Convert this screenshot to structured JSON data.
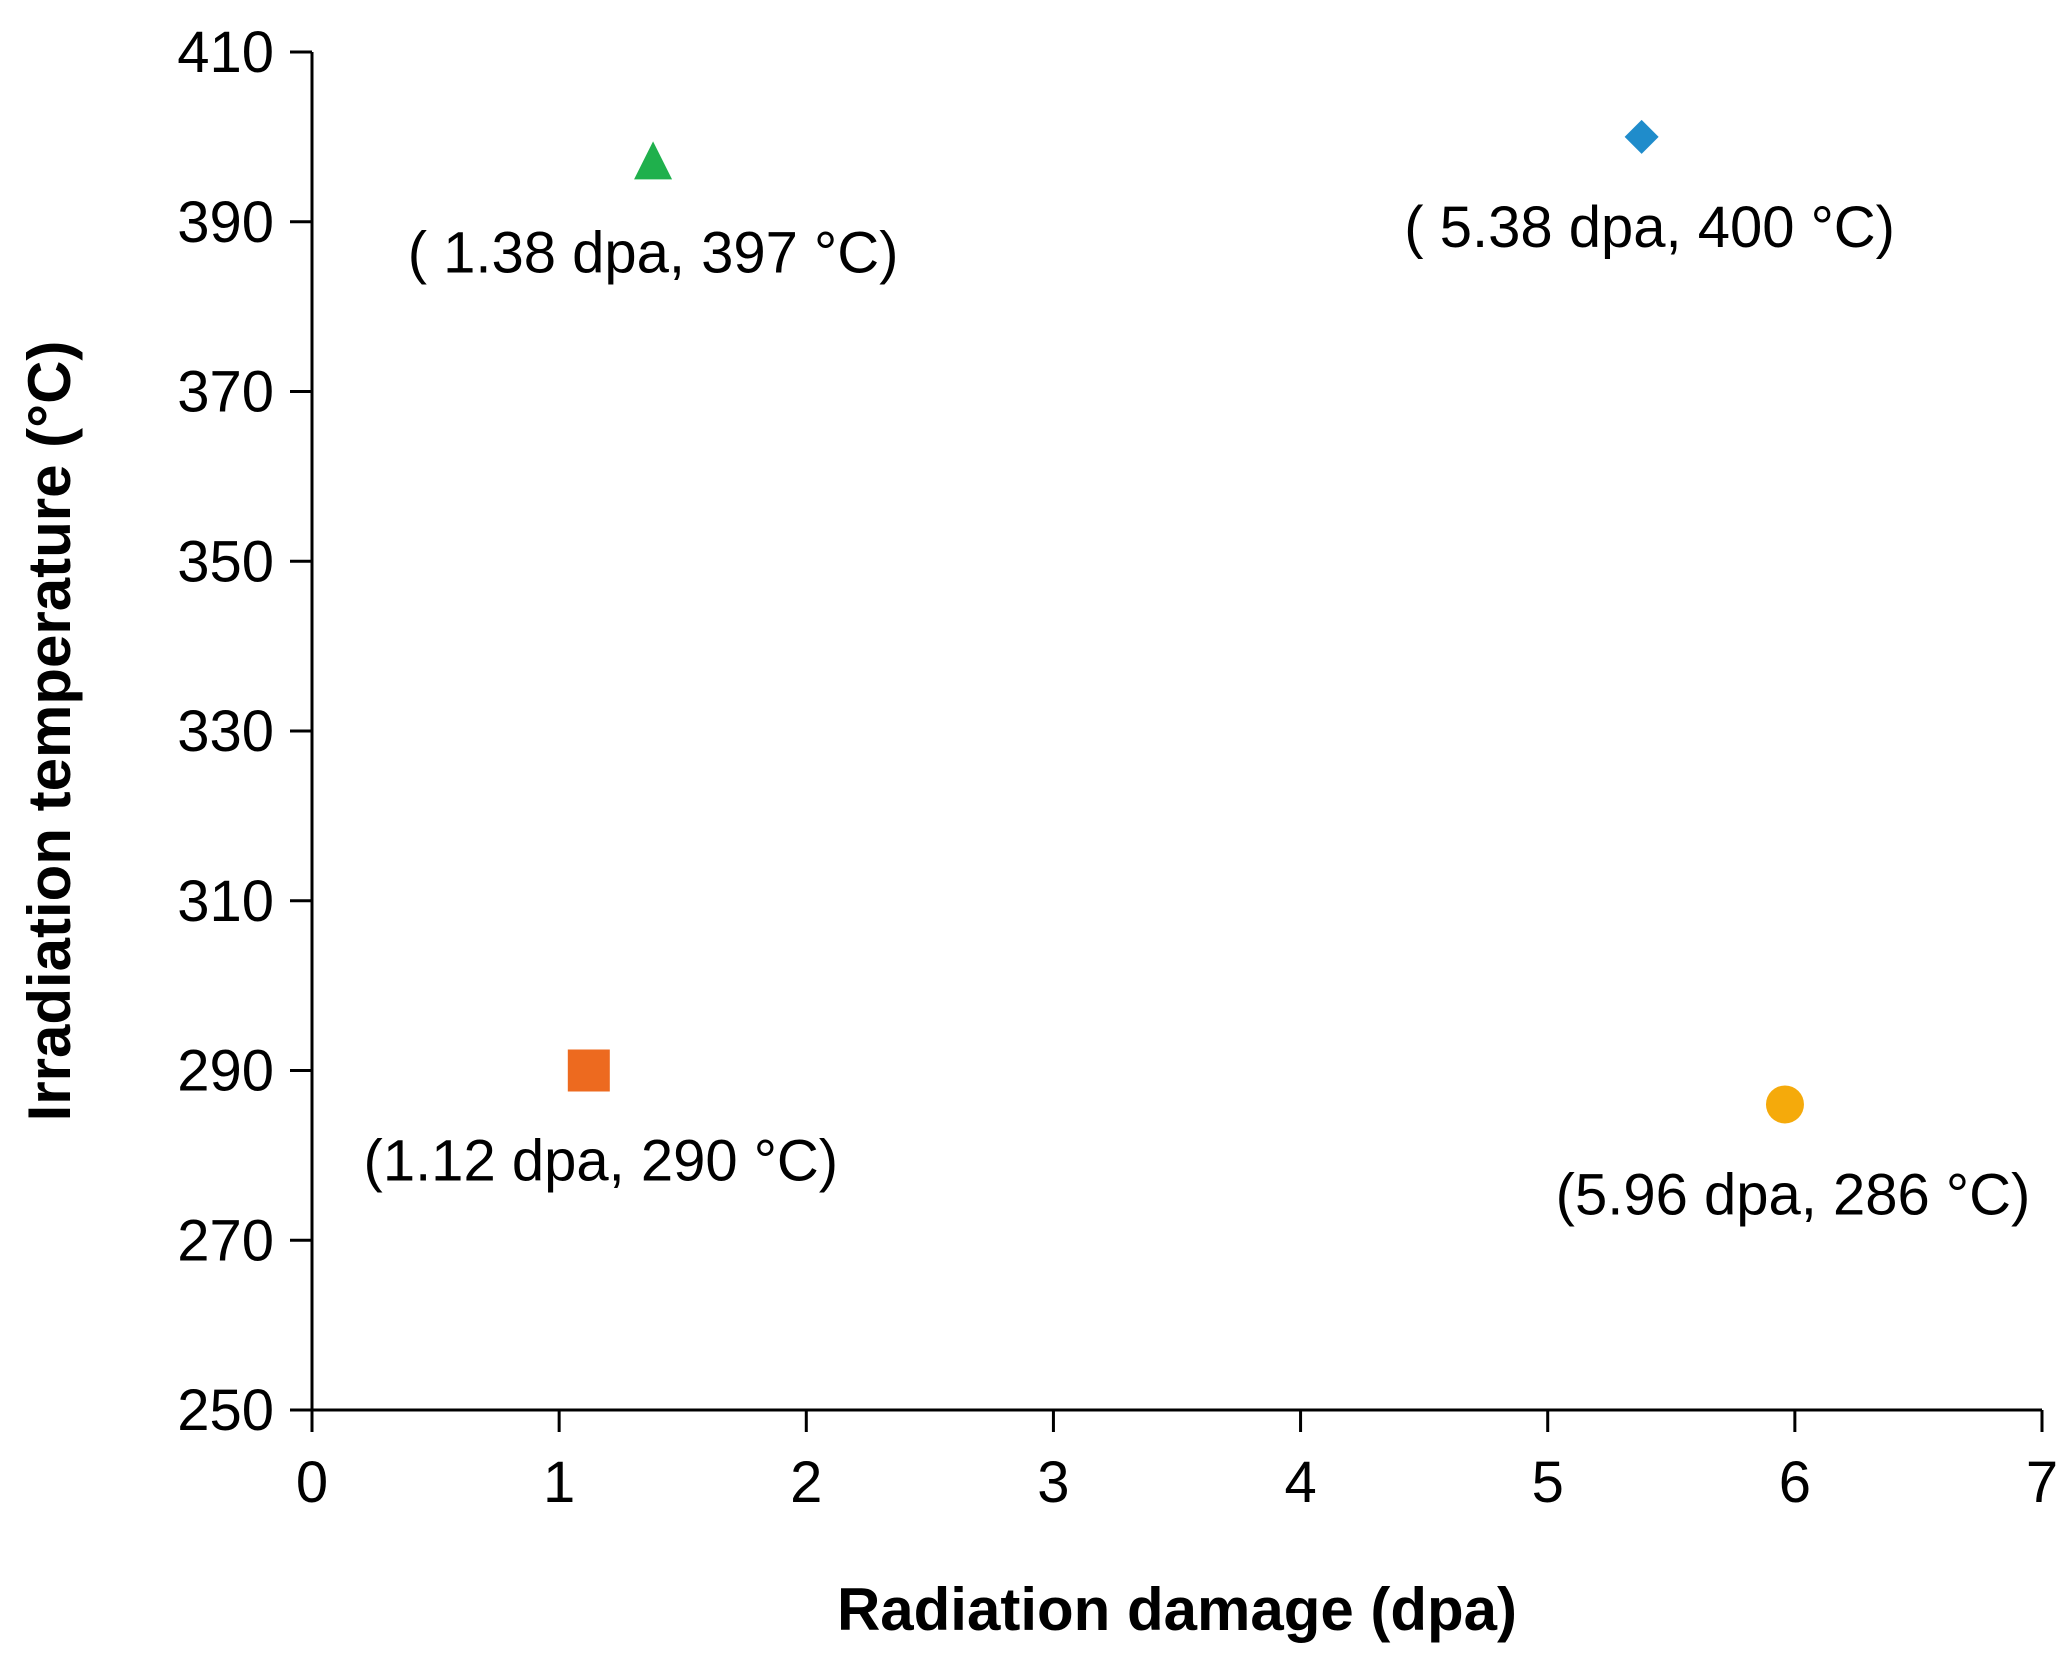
{
  "chart_data": {
    "type": "scatter",
    "title": "",
    "xlabel": "Radiation damage (dpa)",
    "ylabel": "Irradiation temperature (°C)",
    "xlim": [
      0,
      7
    ],
    "ylim": [
      250,
      410
    ],
    "xticks": [
      0,
      1,
      2,
      3,
      4,
      5,
      6,
      7
    ],
    "yticks": [
      250,
      270,
      290,
      310,
      330,
      350,
      370,
      390,
      410
    ],
    "grid": false,
    "legend": "none",
    "points": [
      {
        "name": "diamond-point",
        "marker": "diamond",
        "color": "#1f8ccb",
        "x": 5.38,
        "y": 400,
        "label": "( 5.38 dpa, 400 °C)"
      },
      {
        "name": "square-point",
        "marker": "square",
        "color": "#ed6a1f",
        "x": 1.12,
        "y": 290,
        "label": "(1.12 dpa, 290 °C)"
      },
      {
        "name": "triangle-point",
        "marker": "triangle",
        "color": "#1fb04c",
        "x": 1.38,
        "y": 397,
        "label": "( 1.38 dpa, 397 °C)"
      },
      {
        "name": "circle-point",
        "marker": "circle",
        "color": "#f5aa0b",
        "x": 5.96,
        "y": 286,
        "label": "(5.96 dpa, 286 °C)"
      }
    ]
  }
}
